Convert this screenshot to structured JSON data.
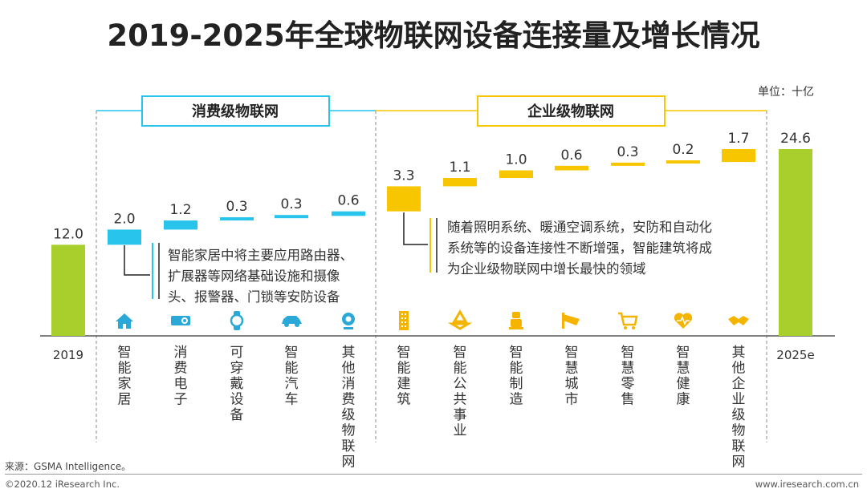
{
  "title": "2019-2025年全球物联网设备连接量及增长情况",
  "unit_label": "单位：十亿",
  "groups": {
    "consumer_label": "消费级物联网",
    "enterprise_label": "企业级物联网"
  },
  "notes": {
    "consumer": [
      "智能家居中将主要应用路由器、",
      "扩展器等网络基础设施和摄像",
      "头、报警器、门锁等安防设备"
    ],
    "enterprise": [
      "随着照明系统、暖通空调系统，安防和自动化",
      "系统等的设备连接性不断增强，智能建筑将成",
      "为企业级物联网中增长最快的领域"
    ]
  },
  "source": "来源：GSMA Intelligence。",
  "copyright": "©2020.12 iResearch Inc.",
  "website": "www.iresearch.com.cn",
  "colors": {
    "total": "#a8cf2c",
    "consumer": "#29c4ec",
    "enterprise": "#f7c600",
    "icon": "#f4b400",
    "connector": "#222222"
  },
  "chart_data": {
    "type": "bar",
    "subtype": "waterfall",
    "unit": "十亿",
    "ylim": [
      0,
      25
    ],
    "categories": [
      "2019",
      "智能家居",
      "消费电子",
      "可穿戴设备",
      "智能汽车",
      "其他消费级物联网",
      "智能建筑",
      "智能公共事业",
      "智能制造",
      "智慧城市",
      "智慧零售",
      "智慧健康",
      "其他企业级物联网",
      "2025e"
    ],
    "values": [
      12.0,
      2.0,
      1.2,
      0.3,
      0.3,
      0.6,
      3.3,
      1.1,
      1.0,
      0.6,
      0.3,
      0.2,
      1.7,
      24.6
    ],
    "value_labels": [
      "12.0",
      "2.0",
      "1.2",
      "0.3",
      "0.3",
      "0.6",
      "3.3",
      "1.1",
      "1.0",
      "0.6",
      "0.3",
      "0.2",
      "1.7",
      "24.6"
    ],
    "kinds": [
      "total",
      "consumer",
      "consumer",
      "consumer",
      "consumer",
      "consumer",
      "enterprise",
      "enterprise",
      "enterprise",
      "enterprise",
      "enterprise",
      "enterprise",
      "enterprise",
      "total"
    ],
    "icons": [
      null,
      "house-icon",
      "projector-icon",
      "smartwatch-icon",
      "car-icon",
      "webcam-icon",
      "building-icon",
      "recycle-icon",
      "robot-icon",
      "surveillance-camera-icon",
      "shopping-cart-icon",
      "heart-pulse-icon",
      "handshake-icon",
      null
    ]
  }
}
